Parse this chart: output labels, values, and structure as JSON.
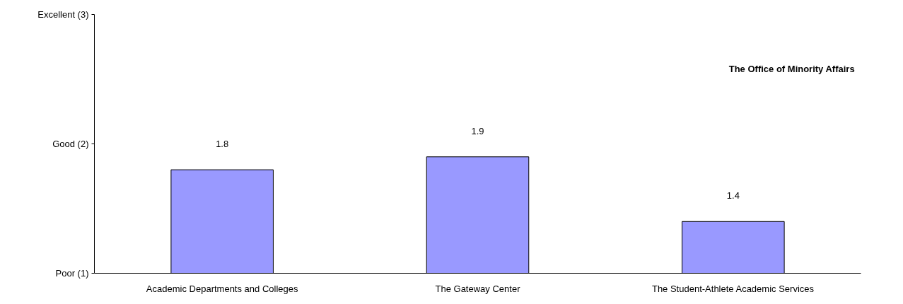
{
  "chart_data": {
    "type": "bar",
    "title": "The Office of Minority Affairs",
    "categories": [
      "Academic Departments and Colleges",
      "The Gateway Center",
      "The Student-Athlete Academic Services"
    ],
    "values": [
      1.8,
      1.9,
      1.4
    ],
    "color": "#9999ff",
    "ylim": [
      1,
      3
    ],
    "yticks": [
      {
        "value": 1,
        "label": "Poor (1)"
      },
      {
        "value": 2,
        "label": "Good (2)"
      },
      {
        "value": 3,
        "label": "Excellent (3)"
      }
    ],
    "data_labels": true,
    "grid": false
  }
}
